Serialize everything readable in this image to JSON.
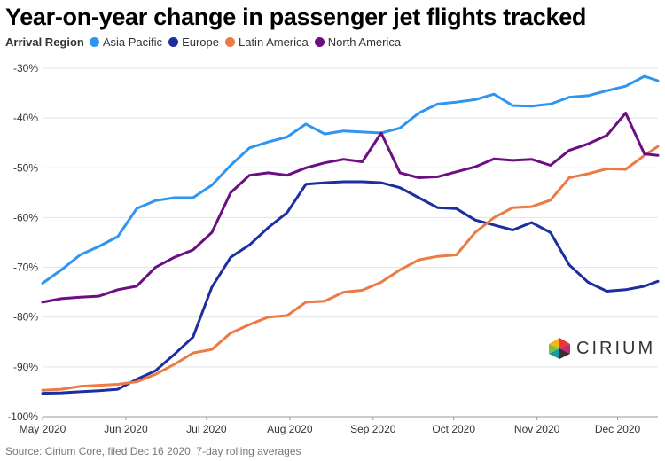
{
  "chart_data": {
    "type": "line",
    "title": "Year-on-year change in passenger jet flights tracked",
    "legend_title": "Arrival Region",
    "legend_position": "top-left",
    "x_ticks": [
      "May 2020",
      "Jun 2020",
      "Jul 2020",
      "Aug 2020",
      "Sep 2020",
      "Oct 2020",
      "Nov 2020",
      "Dec 2020"
    ],
    "x_range": [
      "2020-05-01",
      "2020-12-16"
    ],
    "y_ticks": [
      "-30%",
      "-40%",
      "-50%",
      "-60%",
      "-70%",
      "-80%",
      "-90%",
      "-100%"
    ],
    "ylim": [
      -100,
      -30
    ],
    "grid": "horizontal",
    "x": [
      "2020-05-01",
      "2020-05-08",
      "2020-05-15",
      "2020-05-22",
      "2020-05-29",
      "2020-06-05",
      "2020-06-12",
      "2020-06-19",
      "2020-06-26",
      "2020-07-03",
      "2020-07-10",
      "2020-07-17",
      "2020-07-24",
      "2020-07-31",
      "2020-08-07",
      "2020-08-14",
      "2020-08-21",
      "2020-08-28",
      "2020-09-04",
      "2020-09-11",
      "2020-09-18",
      "2020-09-25",
      "2020-10-02",
      "2020-10-09",
      "2020-10-16",
      "2020-10-23",
      "2020-10-30",
      "2020-11-06",
      "2020-11-13",
      "2020-11-20",
      "2020-11-27",
      "2020-12-04",
      "2020-12-11",
      "2020-12-16"
    ],
    "series": [
      {
        "name": "Asia Pacific",
        "color": "#2f95f0",
        "values": [
          -73.2,
          -70.5,
          -67.5,
          -65.8,
          -63.8,
          -58.2,
          -56.6,
          -56.0,
          -56.0,
          -53.5,
          -49.5,
          -46.0,
          -44.8,
          -43.8,
          -41.2,
          -43.2,
          -42.6,
          -42.8,
          -43.0,
          -42.0,
          -39.0,
          -37.2,
          -36.8,
          -36.3,
          -35.2,
          -37.5,
          -37.6,
          -37.2,
          -35.8,
          -35.5,
          -34.5,
          -33.6,
          -31.6,
          -32.5
        ]
      },
      {
        "name": "Europe",
        "color": "#1d2ea0",
        "values": [
          -95.3,
          -95.2,
          -95.0,
          -94.8,
          -94.5,
          -92.5,
          -90.8,
          -87.5,
          -84.0,
          -74.0,
          -68.0,
          -65.5,
          -62.0,
          -59.0,
          -53.3,
          -53.0,
          -52.8,
          -52.8,
          -53.0,
          -54.0,
          -56.0,
          -58.0,
          -58.2,
          -60.5,
          -61.5,
          -62.5,
          -61.0,
          -63.0,
          -69.5,
          -73.0,
          -74.8,
          -74.5,
          -73.8,
          -72.8
        ]
      },
      {
        "name": "Latin America",
        "color": "#ec7a45",
        "values": [
          -94.7,
          -94.5,
          -93.9,
          -93.7,
          -93.5,
          -93.0,
          -91.5,
          -89.5,
          -87.2,
          -86.5,
          -83.2,
          -81.5,
          -80.0,
          -79.7,
          -77.0,
          -76.8,
          -75.0,
          -74.6,
          -73.0,
          -70.5,
          -68.5,
          -67.8,
          -67.5,
          -63.0,
          -60.0,
          -58.0,
          -57.8,
          -56.5,
          -52.0,
          -51.2,
          -50.2,
          -50.3,
          -47.5,
          -45.7
        ]
      },
      {
        "name": "North America",
        "color": "#6b0f82",
        "values": [
          -77.0,
          -76.3,
          -76.0,
          -75.8,
          -74.5,
          -73.8,
          -70.0,
          -68.0,
          -66.5,
          -63.0,
          -55.0,
          -51.5,
          -51.0,
          -51.5,
          -50.0,
          -49.0,
          -48.3,
          -48.8,
          -43.0,
          -51.0,
          -52.0,
          -51.8,
          -50.8,
          -49.8,
          -48.2,
          -48.5,
          -48.3,
          -49.5,
          -46.5,
          -45.2,
          -43.5,
          -39.0,
          -47.2,
          -47.5
        ]
      }
    ]
  },
  "source": "Source: Cirium Core, filed Dec 16 2020, 7-day rolling averages",
  "logo_text": "CIRIUM"
}
